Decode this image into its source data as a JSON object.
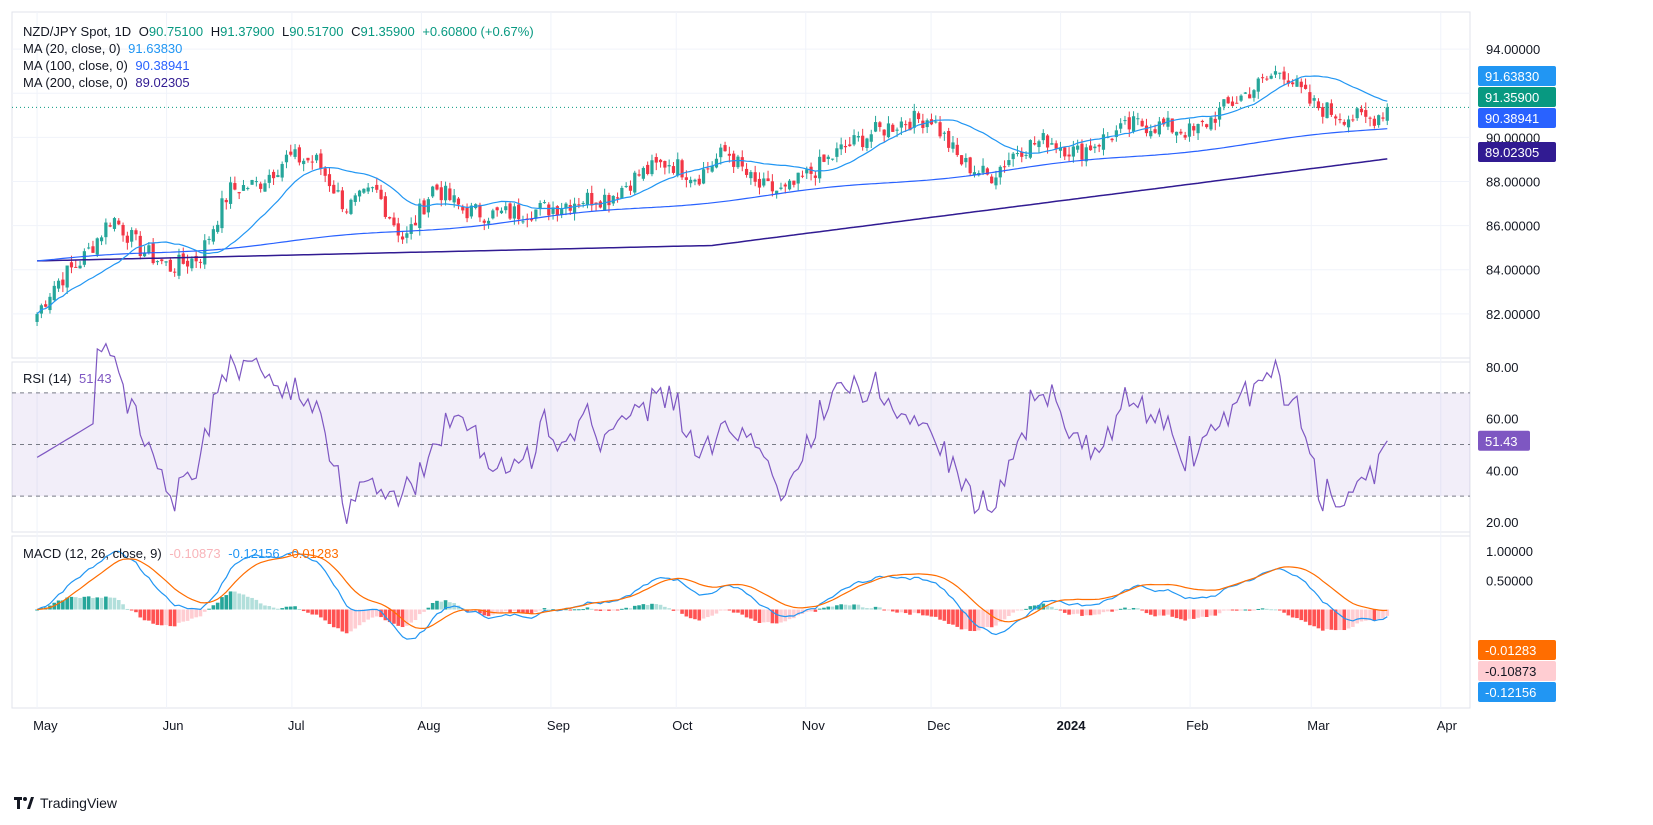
{
  "header": {
    "symbol": "NZD/JPY Spot, 1D",
    "ohlc": [
      {
        "k": "O",
        "v": "90.75100"
      },
      {
        "k": "H",
        "v": "91.37900"
      },
      {
        "k": "L",
        "v": "90.51700"
      },
      {
        "k": "C",
        "v": "91.35900"
      }
    ],
    "change": "+0.60800 (+0.67%)"
  },
  "indicators": {
    "ma20": {
      "label": "MA (20, close, 0)",
      "value": "91.63830"
    },
    "ma100": {
      "label": "MA (100, close, 0)",
      "value": "90.38941"
    },
    "ma200": {
      "label": "MA (200, close, 0)",
      "value": "89.02305"
    },
    "rsi": {
      "label": "RSI (14)",
      "value": "51.43"
    },
    "macd": {
      "label": "MACD (12, 26, close, 9)",
      "hist": "-0.10873",
      "macd": "-0.12156",
      "signal": "-0.01283"
    }
  },
  "colors": {
    "up": "#26a69a",
    "down": "#f23645",
    "ma20": "#2196f3",
    "ma100": "#2962ff",
    "ma200": "#311b92",
    "rsi": "#7e57c2",
    "macd": "#2196f3",
    "signal": "#ff6d00",
    "close_badge": "#089981"
  },
  "chart_data": [
    {
      "type": "candlestick",
      "title": "NZD/JPY Spot, 1D",
      "ylim": [
        80,
        95
      ],
      "y_ticks": [
        "94.00000",
        "92.00000",
        "90.00000",
        "88.00000",
        "86.00000",
        "84.00000",
        "82.00000"
      ],
      "x_ticks": [
        "May",
        "Jun",
        "Jul",
        "Aug",
        "Sep",
        "Oct",
        "Nov",
        "Dec",
        "2024",
        "Feb",
        "Mar",
        "Apr"
      ],
      "close_points": [
        {
          "d": "2023-05-01",
          "c": 82.0
        },
        {
          "d": "2023-05-05",
          "c": 83.3
        },
        {
          "d": "2023-05-12",
          "c": 84.5
        },
        {
          "d": "2023-05-19",
          "c": 86.4
        },
        {
          "d": "2023-05-26",
          "c": 84.9
        },
        {
          "d": "2023-06-02",
          "c": 84.1
        },
        {
          "d": "2023-06-09",
          "c": 84.6
        },
        {
          "d": "2023-06-16",
          "c": 87.6
        },
        {
          "d": "2023-06-23",
          "c": 87.9
        },
        {
          "d": "2023-06-30",
          "c": 89.1
        },
        {
          "d": "2023-07-07",
          "c": 88.9
        },
        {
          "d": "2023-07-14",
          "c": 86.8
        },
        {
          "d": "2023-07-21",
          "c": 87.6
        },
        {
          "d": "2023-07-28",
          "c": 85.3
        },
        {
          "d": "2023-08-04",
          "c": 87.8
        },
        {
          "d": "2023-08-11",
          "c": 86.7
        },
        {
          "d": "2023-08-18",
          "c": 86.5
        },
        {
          "d": "2023-08-25",
          "c": 86.6
        },
        {
          "d": "2023-09-01",
          "c": 86.8
        },
        {
          "d": "2023-09-08",
          "c": 87.2
        },
        {
          "d": "2023-09-15",
          "c": 87.3
        },
        {
          "d": "2023-09-22",
          "c": 88.3
        },
        {
          "d": "2023-09-29",
          "c": 88.9
        },
        {
          "d": "2023-10-06",
          "c": 88.2
        },
        {
          "d": "2023-10-13",
          "c": 89.4
        },
        {
          "d": "2023-10-20",
          "c": 87.8
        },
        {
          "d": "2023-10-27",
          "c": 87.5
        },
        {
          "d": "2023-11-03",
          "c": 88.5
        },
        {
          "d": "2023-11-10",
          "c": 89.5
        },
        {
          "d": "2023-11-17",
          "c": 90.2
        },
        {
          "d": "2023-11-24",
          "c": 90.7
        },
        {
          "d": "2023-12-01",
          "c": 90.9
        },
        {
          "d": "2023-12-08",
          "c": 88.9
        },
        {
          "d": "2023-12-15",
          "c": 88.2
        },
        {
          "d": "2023-12-22",
          "c": 89.5
        },
        {
          "d": "2023-12-29",
          "c": 89.9
        },
        {
          "d": "2024-01-05",
          "c": 89.3
        },
        {
          "d": "2024-01-12",
          "c": 90.0
        },
        {
          "d": "2024-01-19",
          "c": 90.6
        },
        {
          "d": "2024-01-26",
          "c": 90.5
        },
        {
          "d": "2024-02-02",
          "c": 90.2
        },
        {
          "d": "2024-02-09",
          "c": 91.3
        },
        {
          "d": "2024-02-16",
          "c": 92.2
        },
        {
          "d": "2024-02-23",
          "c": 93.1
        },
        {
          "d": "2024-03-01",
          "c": 91.5
        },
        {
          "d": "2024-03-08",
          "c": 91.0
        },
        {
          "d": "2024-03-15",
          "c": 90.8
        },
        {
          "d": "2024-03-20",
          "c": 91.359
        }
      ],
      "series": [
        {
          "name": "MA (20, close, 0)",
          "last": 91.6383
        },
        {
          "name": "MA (100, close, 0)",
          "last": 90.38941
        },
        {
          "name": "MA (200, close, 0)",
          "last": 89.02305
        }
      ],
      "price_labels": [
        "91.63830",
        "91.35900",
        "90.38941",
        "89.02305"
      ]
    },
    {
      "type": "line",
      "title": "RSI (14)",
      "ylim": [
        20,
        80
      ],
      "y_ticks": [
        "80.00",
        "60.00",
        "40.00",
        "20.00"
      ],
      "bands": [
        30,
        50,
        70
      ],
      "last": "51.43"
    },
    {
      "type": "bar",
      "title": "MACD (12, 26, close, 9)",
      "ylim": [
        -1.2,
        1.0
      ],
      "y_ticks": [
        "1.00000",
        "0.50000"
      ],
      "series": [
        {
          "name": "Histogram",
          "last": -0.10873
        },
        {
          "name": "MACD",
          "last": -0.12156
        },
        {
          "name": "Signal",
          "last": -0.01283
        }
      ],
      "price_labels": [
        "-0.01283",
        "-0.10873",
        "-0.12156"
      ]
    }
  ],
  "footer": {
    "brand": "TradingView"
  }
}
